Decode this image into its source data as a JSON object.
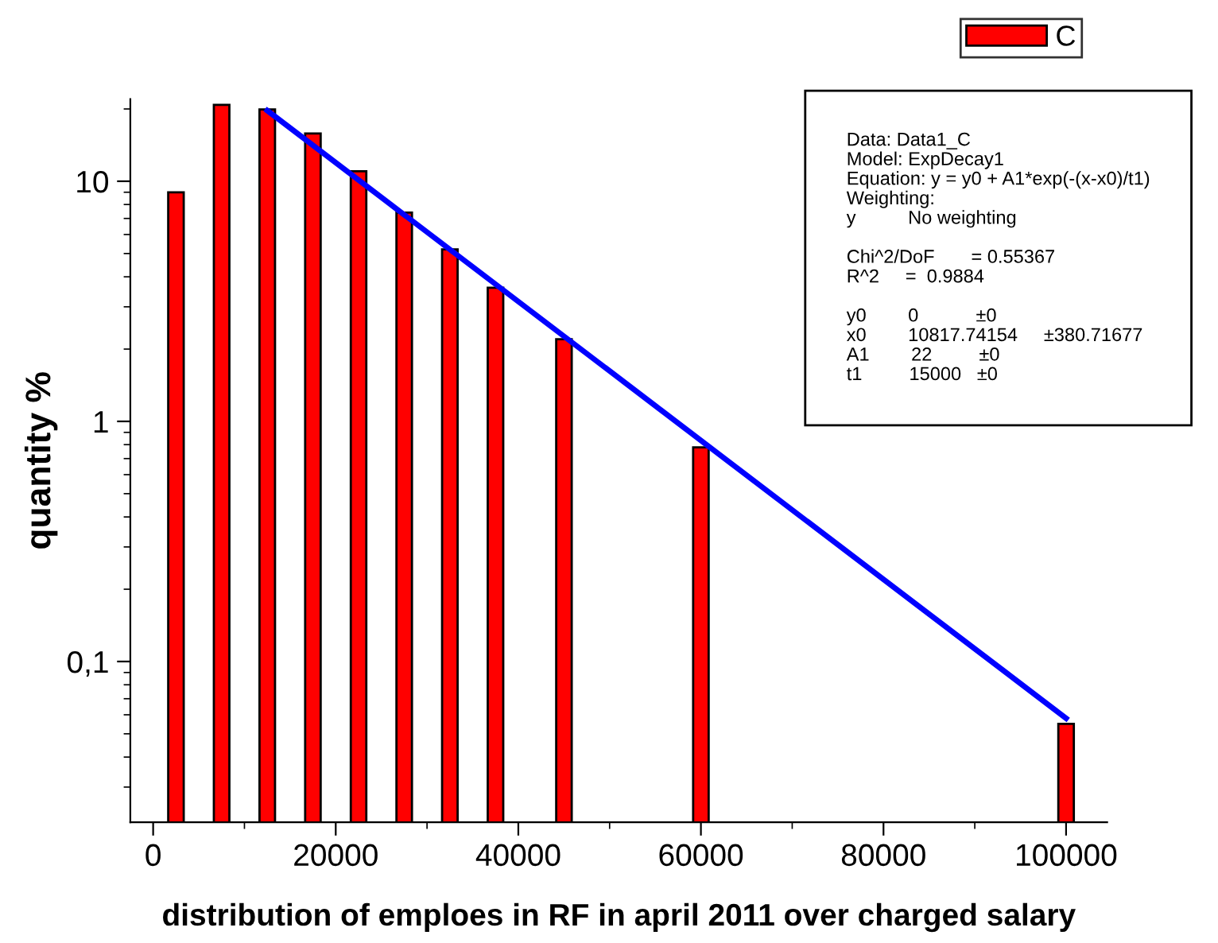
{
  "chart_data": {
    "type": "bar",
    "xlabel": "distribution of emploes in RF in april 2011 over charged salary",
    "ylabel": "quantity %",
    "series": [
      {
        "name": "C",
        "color": "#ff0000",
        "x": [
          2500,
          7500,
          12500,
          17500,
          22500,
          27500,
          32500,
          37500,
          45000,
          60000,
          100000
        ],
        "values": [
          9.0,
          20.8,
          19.9,
          15.8,
          11,
          7.4,
          5.2,
          3.6,
          2.2,
          0.78,
          0.055
        ]
      },
      {
        "type": "line",
        "color": "#0000ff",
        "x": [
          12500,
          100000
        ],
        "values": [
          19.7,
          0.058
        ]
      }
    ],
    "log": "y",
    "xlim": [
      -2500,
      104500
    ],
    "xticks": [
      0,
      20000,
      40000,
      60000,
      80000,
      100000
    ],
    "ylim": [
      0.0214,
      22
    ],
    "yticks": [
      {
        "value": 0.1,
        "label": "0,1"
      },
      1,
      10
    ],
    "grid": false,
    "legend": "top right",
    "annotations": [
      "Data: Data1_C\nModel: ExpDecay1\nEquation: y = y0 + A1*exp(-(x-x0)/t1)\nWeighting:\ny          No weighting\n\nChi^2/DoF       = 0.55367\nR^2     =  0.9884\n\ny0        0           ±0\nx0        10817.74154     ±380.71677\nA1        22         ±0\nt1         15000   ±0"
    ]
  }
}
